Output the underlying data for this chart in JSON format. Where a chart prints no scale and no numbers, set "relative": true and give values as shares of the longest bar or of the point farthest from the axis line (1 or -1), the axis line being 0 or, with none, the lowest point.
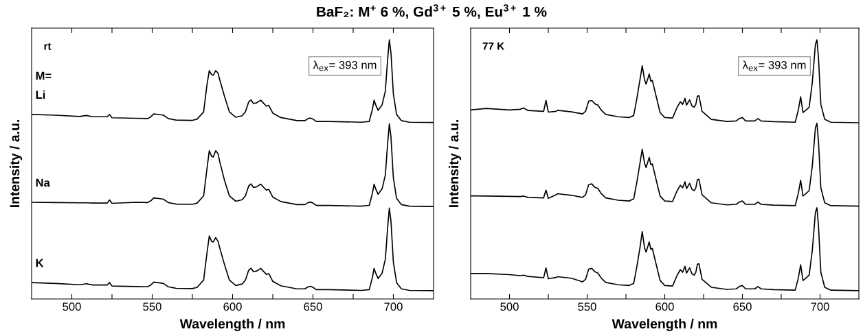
{
  "chart_data": [
    {
      "type": "line",
      "title": "BaF₂: M$^{+}$ 6 %, Gd$^{3+}$ 5 %, Eu$^{3+}$ 1 %",
      "xlabel": "Wavelength / nm",
      "ylabel": "Intensity / a.u.",
      "relative": true,
      "legend": false,
      "grid": false,
      "xlim": [
        475,
        725
      ],
      "xticks": [
        500,
        {
          "value": 525,
          "label": null
        },
        550,
        {
          "value": 575,
          "label": null
        },
        600,
        {
          "value": 625,
          "label": null
        },
        650,
        {
          "value": 675,
          "label": null
        },
        700
      ],
      "annotations": [
        "rt",
        "λ$_{ex}$= 393 nm",
        "M="
      ],
      "x": [
        475,
        490,
        505,
        509,
        513,
        522,
        523.5,
        525,
        540,
        547,
        549,
        551,
        555,
        557,
        560,
        565,
        575,
        578,
        582,
        584,
        585.5,
        587,
        588,
        589.5,
        591,
        592,
        595,
        598,
        602,
        606,
        608,
        610,
        611.5,
        613,
        615,
        617.5,
        619,
        621,
        622.5,
        625,
        630,
        640,
        645,
        647,
        648.5,
        650,
        652,
        660,
        680,
        685,
        687,
        688,
        689,
        690.5,
        693,
        695,
        696.5,
        697.5,
        698.5,
        700,
        702,
        705,
        710,
        725
      ],
      "series": [
        {
          "name": "Li",
          "color": "#000000",
          "values": [
            0.712,
            0.709,
            0.704,
            0.708,
            0.703,
            0.703,
            0.712,
            0.699,
            0.697,
            0.696,
            0.702,
            0.714,
            0.711,
            0.709,
            0.696,
            0.69,
            0.689,
            0.694,
            0.722,
            0.823,
            0.881,
            0.865,
            0.863,
            0.881,
            0.871,
            0.846,
            0.781,
            0.722,
            0.701,
            0.707,
            0.722,
            0.76,
            0.768,
            0.754,
            0.757,
            0.767,
            0.757,
            0.744,
            0.747,
            0.717,
            0.7,
            0.688,
            0.688,
            0.696,
            0.698,
            0.694,
            0.685,
            0.685,
            0.682,
            0.685,
            0.733,
            0.767,
            0.749,
            0.728,
            0.749,
            0.802,
            0.929,
            1.0,
            0.95,
            0.791,
            0.712,
            0.688,
            0.682,
            0.681
          ]
        },
        {
          "name": "Na",
          "color": "#000000",
          "values": [
            0.373,
            0.372,
            0.371,
            0.371,
            0.37,
            0.37,
            0.382,
            0.369,
            0.373,
            0.372,
            0.378,
            0.39,
            0.387,
            0.385,
            0.372,
            0.366,
            0.365,
            0.37,
            0.398,
            0.499,
            0.572,
            0.55,
            0.548,
            0.572,
            0.56,
            0.53,
            0.457,
            0.398,
            0.377,
            0.383,
            0.398,
            0.436,
            0.444,
            0.43,
            0.433,
            0.443,
            0.433,
            0.42,
            0.423,
            0.393,
            0.376,
            0.364,
            0.364,
            0.372,
            0.374,
            0.37,
            0.361,
            0.361,
            0.358,
            0.361,
            0.409,
            0.443,
            0.425,
            0.404,
            0.425,
            0.478,
            0.605,
            0.676,
            0.626,
            0.467,
            0.388,
            0.364,
            0.358,
            0.357
          ]
        },
        {
          "name": "K",
          "color": "#000000",
          "values": [
            0.063,
            0.06,
            0.055,
            0.059,
            0.054,
            0.054,
            0.063,
            0.05,
            0.048,
            0.047,
            0.053,
            0.065,
            0.062,
            0.06,
            0.047,
            0.041,
            0.04,
            0.045,
            0.073,
            0.174,
            0.243,
            0.222,
            0.22,
            0.237,
            0.222,
            0.197,
            0.132,
            0.073,
            0.052,
            0.058,
            0.073,
            0.111,
            0.119,
            0.105,
            0.108,
            0.118,
            0.108,
            0.095,
            0.098,
            0.068,
            0.051,
            0.039,
            0.039,
            0.047,
            0.049,
            0.045,
            0.036,
            0.036,
            0.033,
            0.036,
            0.084,
            0.118,
            0.1,
            0.079,
            0.1,
            0.153,
            0.28,
            0.351,
            0.301,
            0.142,
            0.063,
            0.039,
            0.033,
            0.032
          ]
        }
      ]
    },
    {
      "type": "line",
      "xlabel": "Wavelength / nm",
      "ylabel": "Intensity / a.u.",
      "relative": true,
      "legend": false,
      "grid": false,
      "xlim": [
        475,
        725
      ],
      "xticks": [
        500,
        {
          "value": 525,
          "label": null
        },
        550,
        {
          "value": 575,
          "label": null
        },
        600,
        {
          "value": 625,
          "label": null
        },
        650,
        {
          "value": 675,
          "label": null
        },
        700
      ],
      "annotations": [
        "77 K",
        "λ$_{ex}$= 393 nm"
      ],
      "x": [
        475,
        485,
        500,
        507,
        509,
        512,
        522,
        523.5,
        525,
        530,
        531,
        540,
        547,
        549,
        551,
        553,
        555,
        557,
        559,
        562,
        570,
        577,
        580,
        582,
        584,
        585.5,
        587,
        588,
        590,
        591,
        592,
        594,
        597,
        600,
        605,
        608,
        610,
        611.5,
        613,
        614,
        616,
        617.5,
        619,
        620,
        621,
        622,
        624,
        630,
        640,
        646,
        648,
        650,
        652,
        658,
        660,
        662,
        670,
        684,
        686,
        687.5,
        689,
        691,
        693,
        695,
        697,
        698,
        699,
        700.5,
        703,
        707,
        725
      ],
      "series": [
        {
          "color": "#000000",
          "values": [
            0.729,
            0.735,
            0.729,
            0.732,
            0.737,
            0.727,
            0.724,
            0.766,
            0.721,
            0.724,
            0.728,
            0.722,
            0.714,
            0.724,
            0.763,
            0.766,
            0.753,
            0.748,
            0.729,
            0.712,
            0.703,
            0.7,
            0.708,
            0.772,
            0.845,
            0.9,
            0.845,
            0.829,
            0.868,
            0.84,
            0.843,
            0.793,
            0.719,
            0.7,
            0.698,
            0.74,
            0.761,
            0.751,
            0.774,
            0.748,
            0.768,
            0.745,
            0.74,
            0.751,
            0.782,
            0.784,
            0.724,
            0.693,
            0.685,
            0.687,
            0.696,
            0.7,
            0.687,
            0.687,
            0.696,
            0.687,
            0.684,
            0.682,
            0.729,
            0.78,
            0.719,
            0.729,
            0.74,
            0.835,
            0.982,
            1.0,
            0.929,
            0.751,
            0.693,
            0.682,
            0.68
          ]
        },
        {
          "color": "#000000",
          "values": [
            0.398,
            0.397,
            0.396,
            0.395,
            0.397,
            0.392,
            0.39,
            0.42,
            0.388,
            0.402,
            0.406,
            0.4,
            0.392,
            0.402,
            0.441,
            0.444,
            0.431,
            0.426,
            0.407,
            0.39,
            0.381,
            0.378,
            0.386,
            0.45,
            0.523,
            0.578,
            0.523,
            0.507,
            0.546,
            0.518,
            0.521,
            0.471,
            0.397,
            0.378,
            0.376,
            0.418,
            0.439,
            0.429,
            0.452,
            0.426,
            0.446,
            0.423,
            0.418,
            0.429,
            0.46,
            0.462,
            0.402,
            0.371,
            0.363,
            0.365,
            0.374,
            0.378,
            0.365,
            0.365,
            0.374,
            0.365,
            0.362,
            0.36,
            0.407,
            0.458,
            0.397,
            0.407,
            0.418,
            0.513,
            0.66,
            0.678,
            0.607,
            0.429,
            0.371,
            0.36,
            0.358
          ]
        },
        {
          "color": "#000000",
          "values": [
            0.098,
            0.098,
            0.094,
            0.09,
            0.092,
            0.087,
            0.082,
            0.12,
            0.078,
            0.083,
            0.086,
            0.08,
            0.066,
            0.076,
            0.115,
            0.118,
            0.105,
            0.1,
            0.081,
            0.064,
            0.055,
            0.052,
            0.06,
            0.124,
            0.197,
            0.26,
            0.197,
            0.181,
            0.22,
            0.192,
            0.195,
            0.145,
            0.071,
            0.052,
            0.05,
            0.092,
            0.113,
            0.103,
            0.126,
            0.1,
            0.12,
            0.097,
            0.092,
            0.103,
            0.134,
            0.136,
            0.076,
            0.045,
            0.037,
            0.039,
            0.048,
            0.052,
            0.039,
            0.039,
            0.048,
            0.039,
            0.036,
            0.034,
            0.081,
            0.132,
            0.071,
            0.081,
            0.092,
            0.187,
            0.334,
            0.352,
            0.281,
            0.103,
            0.045,
            0.034,
            0.032
          ]
        }
      ]
    }
  ]
}
